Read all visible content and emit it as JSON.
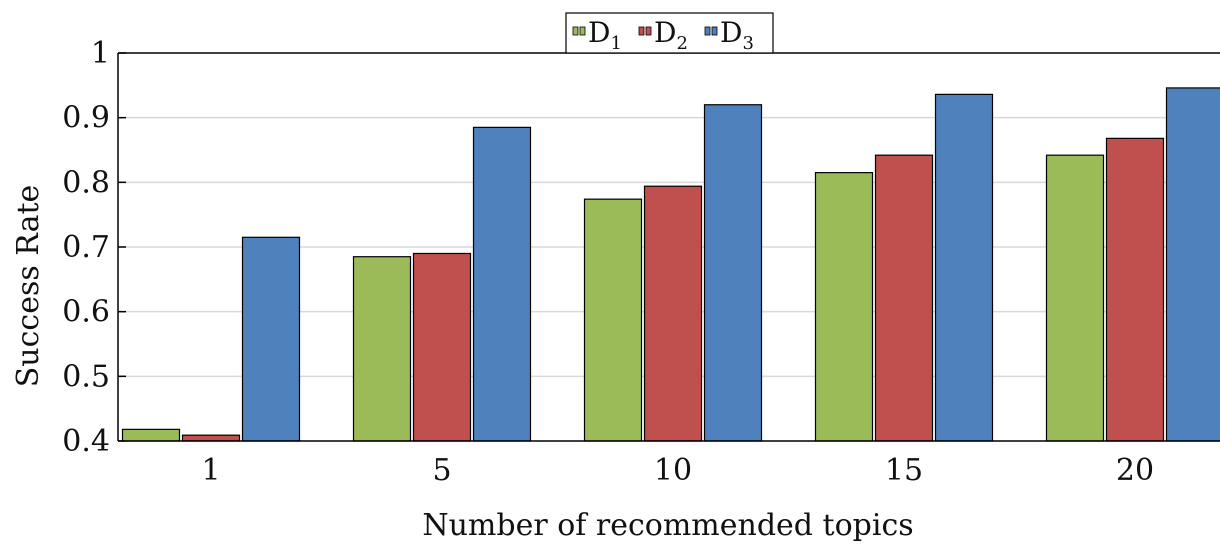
{
  "chart_data": {
    "type": "bar",
    "title": "",
    "xlabel": "Number of recommended topics",
    "ylabel": "Success Rate",
    "categories": [
      "1",
      "5",
      "10",
      "15",
      "20"
    ],
    "ylim": [
      0.4,
      1.0
    ],
    "yticks": [
      "0.4",
      "0.5",
      "0.6",
      "0.7",
      "0.8",
      "0.9",
      "1"
    ],
    "grid": "horizontal",
    "legend_position": "top-center",
    "series": [
      {
        "name": "D",
        "subscript": "1",
        "color": "#9bbb59",
        "values": [
          0.418,
          0.685,
          0.774,
          0.815,
          0.842
        ]
      },
      {
        "name": "D",
        "subscript": "2",
        "color": "#c0504d",
        "values": [
          0.409,
          0.69,
          0.794,
          0.842,
          0.868
        ]
      },
      {
        "name": "D",
        "subscript": "3",
        "color": "#4f81bd",
        "values": [
          0.715,
          0.885,
          0.92,
          0.936,
          0.946
        ]
      }
    ]
  }
}
